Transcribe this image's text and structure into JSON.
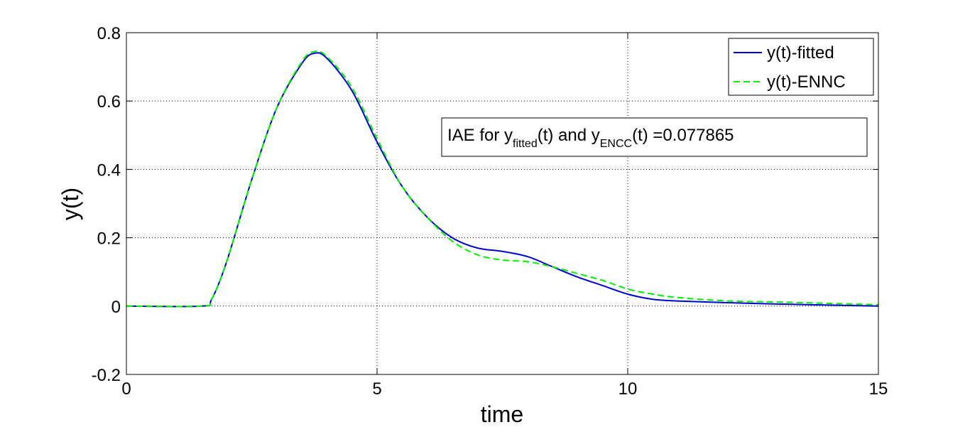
{
  "chart_data": {
    "type": "line",
    "xlabel": "time",
    "ylabel": "y(t)",
    "xlim": [
      0,
      15
    ],
    "ylim": [
      -0.2,
      0.8
    ],
    "xticks": [
      "0",
      "5",
      "10",
      "15"
    ],
    "yticks": [
      "-0.2",
      "0",
      "0.2",
      "0.4",
      "0.6",
      "0.8"
    ],
    "grid": true,
    "legend_position": "top-right",
    "annotation": {
      "prefix": "IAE for y",
      "sub1": "fitted",
      "mid": "(t) and y",
      "sub2": "ENCC",
      "suffix": "(t) =0.077865"
    },
    "series": [
      {
        "name": "y(t)-fitted",
        "color": "#0000cc",
        "style": "solid",
        "x": [
          0,
          1.5,
          1.7,
          2.0,
          2.5,
          3.0,
          3.5,
          3.75,
          4.0,
          4.5,
          5.0,
          5.5,
          6.0,
          6.5,
          7.0,
          7.5,
          8.0,
          8.5,
          9.0,
          9.5,
          10.0,
          10.5,
          11.0,
          12.0,
          13.0,
          14.0,
          15.0
        ],
        "y": [
          0,
          0,
          0.02,
          0.13,
          0.37,
          0.58,
          0.71,
          0.74,
          0.725,
          0.63,
          0.48,
          0.35,
          0.26,
          0.2,
          0.17,
          0.16,
          0.145,
          0.115,
          0.085,
          0.06,
          0.035,
          0.02,
          0.015,
          0.01,
          0.006,
          0.003,
          0
        ]
      },
      {
        "name": "y(t)-ENNC",
        "color": "#00ee00",
        "style": "dashed",
        "x": [
          0,
          1.5,
          1.7,
          2.0,
          2.5,
          3.0,
          3.5,
          3.75,
          4.0,
          4.5,
          5.0,
          5.5,
          6.0,
          6.5,
          7.0,
          7.5,
          8.0,
          8.5,
          9.0,
          9.5,
          10.0,
          10.5,
          11.0,
          12.0,
          13.0,
          14.0,
          15.0
        ],
        "y": [
          0,
          0,
          0.02,
          0.13,
          0.37,
          0.58,
          0.715,
          0.745,
          0.73,
          0.64,
          0.49,
          0.35,
          0.26,
          0.19,
          0.15,
          0.135,
          0.13,
          0.115,
          0.095,
          0.075,
          0.05,
          0.035,
          0.025,
          0.015,
          0.012,
          0.008,
          0.004
        ]
      }
    ]
  }
}
